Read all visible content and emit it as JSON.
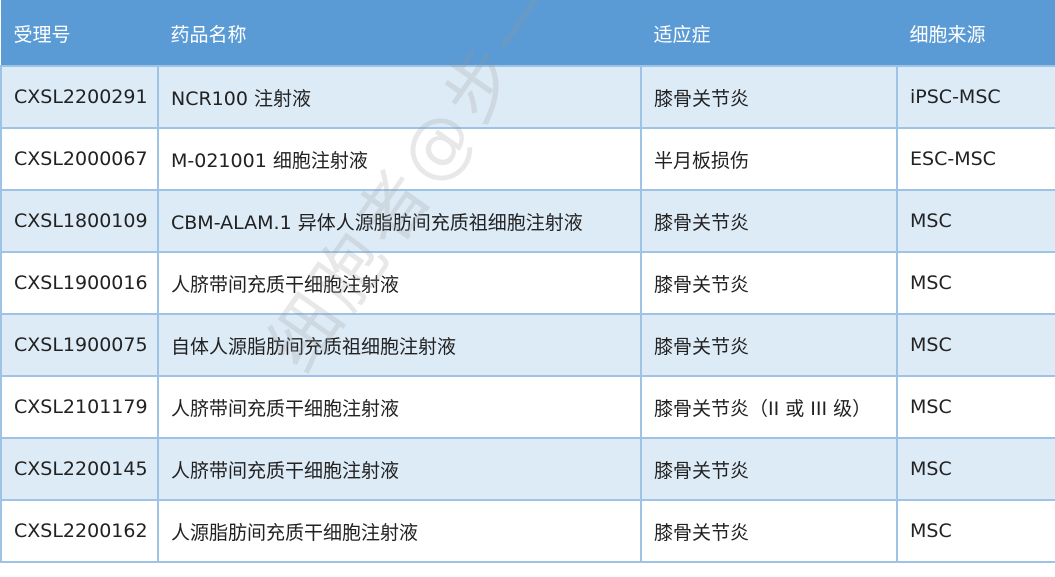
{
  "table": {
    "headers": [
      "受理号",
      "药品名称",
      "适应症",
      "细胞来源"
    ],
    "rows": [
      [
        "CXSL2200291",
        "NCR100 注射液",
        "膝骨关节炎",
        "iPSC-MSC"
      ],
      [
        "CXSL2000067",
        "M-021001 细胞注射液",
        "半月板损伤",
        "ESC-MSC"
      ],
      [
        "CXSL1800109",
        "CBM-ALAM.1 异体人源脂肪间充质祖细胞注射液",
        "膝骨关节炎",
        "MSC"
      ],
      [
        "CXSL1900016",
        "人脐带间充质干细胞注射液",
        "膝骨关节炎",
        "MSC"
      ],
      [
        "CXSL1900075",
        "自体人源脂肪间充质祖细胞注射液",
        "膝骨关节炎",
        "MSC"
      ],
      [
        "CXSL2101179",
        "人脐带间充质干细胞注射液",
        "膝骨关节炎（II 或 III 级）",
        "MSC"
      ],
      [
        "CXSL2200145",
        "人脐带间充质干细胞注射液",
        "膝骨关节炎",
        "MSC"
      ],
      [
        "CXSL2200162",
        "人源脂肪间充质干细胞注射液",
        "膝骨关节炎",
        "MSC"
      ]
    ]
  },
  "watermark": "细胞者@步一生",
  "colors": {
    "header": "#5b9bd5",
    "stripe": "#ddebf7",
    "border": "#9dc3e6"
  }
}
